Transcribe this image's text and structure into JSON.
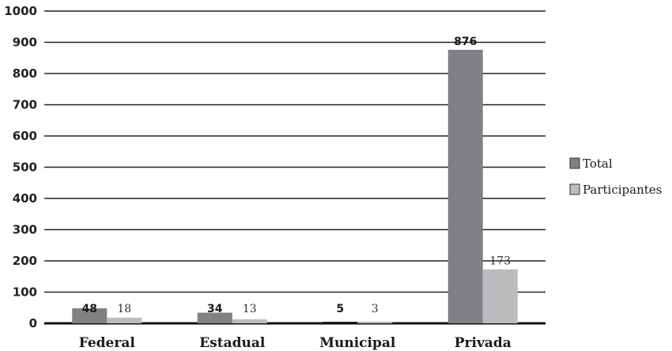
{
  "chart_data": {
    "type": "bar",
    "categories": [
      "Federal",
      "Estadual",
      "Municipal",
      "Privada"
    ],
    "series": [
      {
        "name": "Total",
        "values": [
          48,
          34,
          5,
          876
        ],
        "color": "#808085"
      },
      {
        "name": "Participantes",
        "values": [
          18,
          13,
          3,
          173
        ],
        "color": "#bcbcbf"
      }
    ],
    "ylim": [
      0,
      1000
    ],
    "yticks": [
      0,
      100,
      200,
      300,
      400,
      500,
      600,
      700,
      800,
      900,
      1000
    ],
    "grid": true,
    "legend": "right",
    "title": "",
    "xlabel": "",
    "ylabel": ""
  }
}
